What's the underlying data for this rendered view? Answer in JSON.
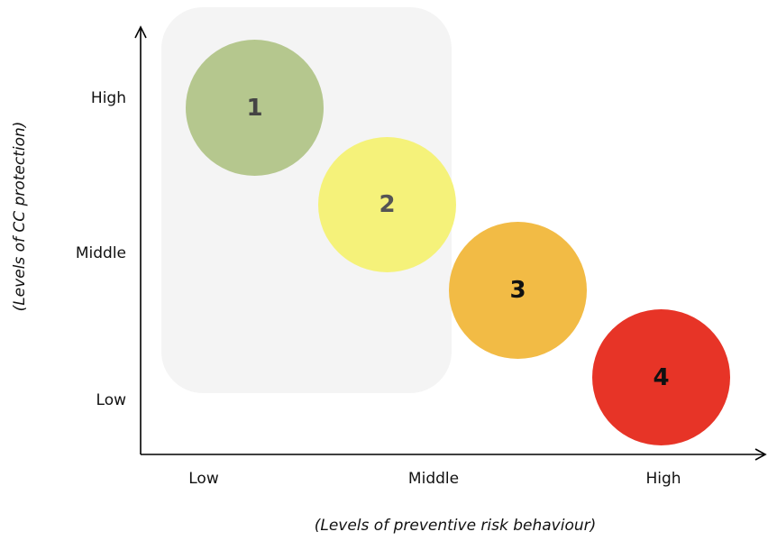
{
  "axes": {
    "y_title": "(Levels of CC protection)",
    "x_title": "(Levels of preventive risk behaviour)",
    "y_ticks": [
      "Low",
      "Middle",
      "High"
    ],
    "x_ticks": [
      "Low",
      "Middle",
      "High"
    ]
  },
  "bubbles": [
    {
      "label": "1",
      "x_level": "Low",
      "y_level": "High",
      "color": "#b5c78e",
      "label_color": "#444444"
    },
    {
      "label": "2",
      "x_level": "Low-Middle",
      "y_level": "Middle-High",
      "color": "#f5f27a",
      "label_color": "#555555"
    },
    {
      "label": "3",
      "x_level": "Middle-High",
      "y_level": "Middle-Low",
      "color": "#f2bb45",
      "label_color": "#111111"
    },
    {
      "label": "4",
      "x_level": "High",
      "y_level": "Low",
      "color": "#e73427",
      "label_color": "#111111"
    }
  ],
  "highlight_region_color": "#f4f4f4"
}
